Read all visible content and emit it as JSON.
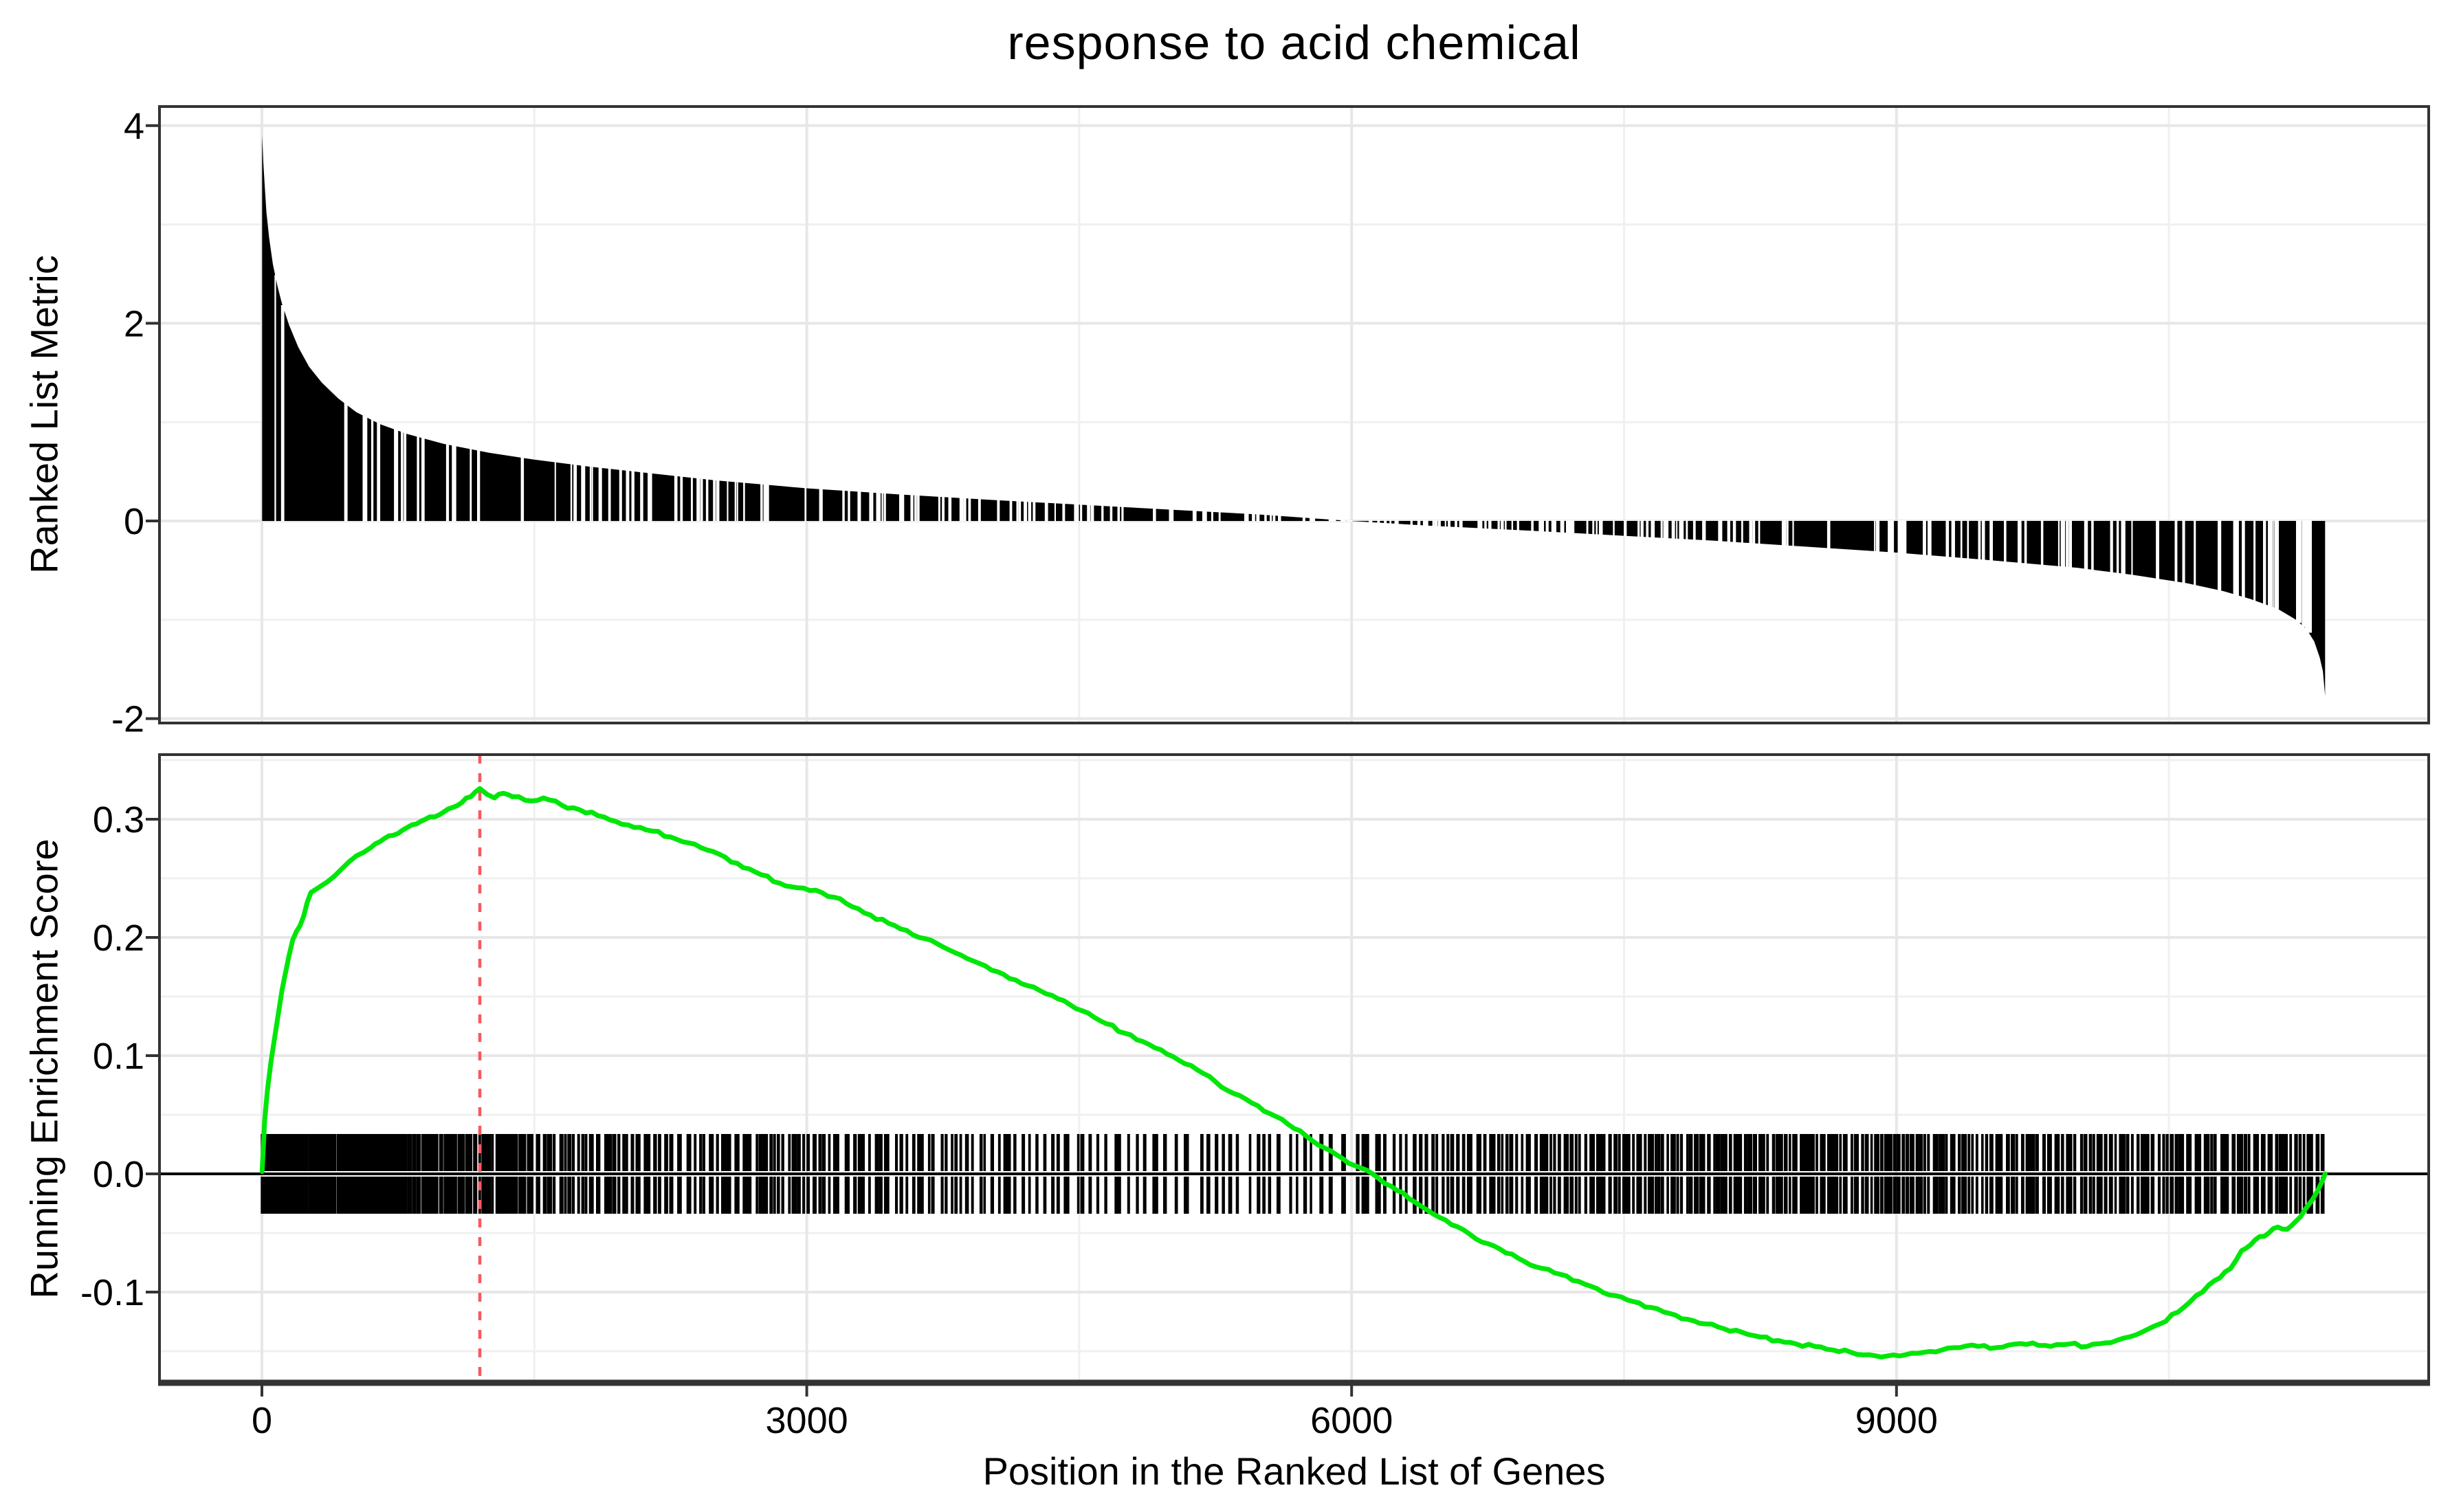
{
  "title": "response to acid chemical",
  "xlabel": "Position in the Ranked List of Genes",
  "panels": {
    "ranked_metric": {
      "ylabel": "Ranked List Metric"
    },
    "enrichment": {
      "ylabel": "Running Enrichment Score"
    }
  },
  "colors": {
    "es_line": "#00e609",
    "peak_vline": "#f8595f",
    "bars": "#000000",
    "grid_major": "#e7e7e7",
    "grid_minor": "#f0f0f0",
    "panel_border": "#333333",
    "zero_line": "#000000",
    "background": "#ffffff",
    "text": "#000000",
    "tick_mark": "#333333"
  },
  "chart_data": [
    {
      "panel": "ranked_list_metric",
      "type": "area",
      "title": "response to acid chemical",
      "xlabel": "",
      "ylabel": "Ranked List Metric",
      "x_ticks": [
        0,
        3000,
        6000,
        9000
      ],
      "x_tick_labels": [
        "0",
        "3000",
        "6000",
        "9000"
      ],
      "x_minor": [
        1500,
        4500,
        7500,
        10500
      ],
      "y_ticks": [
        4,
        2,
        0,
        -2
      ],
      "y_tick_labels": [
        "4",
        "2",
        "0",
        "-2"
      ],
      "y_minor": [
        3,
        1,
        -1
      ],
      "xlim": [
        -570,
        11940
      ],
      "ylim": [
        -2.04,
        4.19
      ],
      "grid": true,
      "n_genes": 11360,
      "metric_range": [
        -1.77,
        3.9
      ],
      "zero_cross_rank": 5950,
      "series": [
        {
          "name": "ranked list metric",
          "points": [
            [
              1,
              3.9
            ],
            [
              4,
              3.78
            ],
            [
              8,
              3.62
            ],
            [
              15,
              3.4
            ],
            [
              25,
              3.12
            ],
            [
              40,
              2.86
            ],
            [
              60,
              2.6
            ],
            [
              85,
              2.38
            ],
            [
              110,
              2.2
            ],
            [
              150,
              1.98
            ],
            [
              200,
              1.76
            ],
            [
              260,
              1.56
            ],
            [
              330,
              1.4
            ],
            [
              420,
              1.24
            ],
            [
              520,
              1.1
            ],
            [
              650,
              0.98
            ],
            [
              800,
              0.88
            ],
            [
              1000,
              0.78
            ],
            [
              1250,
              0.69
            ],
            [
              1500,
              0.62
            ],
            [
              1800,
              0.55
            ],
            [
              2100,
              0.49
            ],
            [
              2500,
              0.41
            ],
            [
              3000,
              0.33
            ],
            [
              3500,
              0.27
            ],
            [
              4000,
              0.215
            ],
            [
              4500,
              0.165
            ],
            [
              5000,
              0.115
            ],
            [
              5500,
              0.065
            ],
            [
              5950,
              0.005
            ],
            [
              6400,
              -0.045
            ],
            [
              7000,
              -0.1
            ],
            [
              7500,
              -0.15
            ],
            [
              8000,
              -0.2
            ],
            [
              8500,
              -0.26
            ],
            [
              9000,
              -0.32
            ],
            [
              9500,
              -0.395
            ],
            [
              10000,
              -0.475
            ],
            [
              10300,
              -0.545
            ],
            [
              10600,
              -0.63
            ],
            [
              10800,
              -0.71
            ],
            [
              10950,
              -0.79
            ],
            [
              11100,
              -0.89
            ],
            [
              11200,
              -1.0
            ],
            [
              11260,
              -1.1
            ],
            [
              11300,
              -1.22
            ],
            [
              11330,
              -1.38
            ],
            [
              11348,
              -1.52
            ],
            [
              11360,
              -1.77
            ]
          ]
        }
      ]
    },
    {
      "panel": "running_enrichment_score",
      "type": "line",
      "xlabel": "Position in the Ranked List of Genes",
      "ylabel": "Running Enrichment Score",
      "x_ticks": [
        0,
        3000,
        6000,
        9000
      ],
      "x_tick_labels": [
        "0",
        "3000",
        "6000",
        "9000"
      ],
      "x_minor": [
        1500,
        4500,
        7500,
        10500
      ],
      "y_ticks": [
        0.3,
        0.2,
        0.1,
        0.0,
        -0.1
      ],
      "y_tick_labels": [
        "0.3",
        "0.2",
        "0.1",
        "0.0",
        "-0.1"
      ],
      "y_minor": [
        0.35,
        0.25,
        0.15,
        0.05,
        -0.05,
        -0.15
      ],
      "xlim": [
        -570,
        11940
      ],
      "ylim": [
        -0.177,
        0.355
      ],
      "grid": true,
      "es_peak": {
        "rank": 1200,
        "value": 0.326
      },
      "es_min": {
        "rank": 8950,
        "value": -0.154
      },
      "vline_rank": 1200,
      "series": [
        {
          "name": "running enrichment score",
          "points": [
            [
              1,
              0.002
            ],
            [
              15,
              0.045
            ],
            [
              30,
              0.07
            ],
            [
              50,
              0.095
            ],
            [
              70,
              0.115
            ],
            [
              90,
              0.135
            ],
            [
              110,
              0.155
            ],
            [
              130,
              0.17
            ],
            [
              150,
              0.185
            ],
            [
              170,
              0.198
            ],
            [
              190,
              0.205
            ],
            [
              210,
              0.21
            ],
            [
              230,
              0.218
            ],
            [
              250,
              0.23
            ],
            [
              270,
              0.238
            ],
            [
              300,
              0.241
            ],
            [
              330,
              0.244
            ],
            [
              360,
              0.247
            ],
            [
              400,
              0.252
            ],
            [
              440,
              0.258
            ],
            [
              480,
              0.264
            ],
            [
              520,
              0.269
            ],
            [
              560,
              0.272
            ],
            [
              600,
              0.276
            ],
            [
              650,
              0.281
            ],
            [
              700,
              0.286
            ],
            [
              750,
              0.288
            ],
            [
              800,
              0.293
            ],
            [
              850,
              0.296
            ],
            [
              900,
              0.3
            ],
            [
              950,
              0.302
            ],
            [
              1000,
              0.306
            ],
            [
              1050,
              0.31
            ],
            [
              1100,
              0.314
            ],
            [
              1150,
              0.319
            ],
            [
              1200,
              0.326
            ],
            [
              1240,
              0.321
            ],
            [
              1280,
              0.318
            ],
            [
              1330,
              0.322
            ],
            [
              1380,
              0.319
            ],
            [
              1450,
              0.316
            ],
            [
              1550,
              0.318
            ],
            [
              1650,
              0.312
            ],
            [
              1750,
              0.308
            ],
            [
              1850,
              0.303
            ],
            [
              1950,
              0.298
            ],
            [
              2050,
              0.293
            ],
            [
              2150,
              0.29
            ],
            [
              2250,
              0.285
            ],
            [
              2350,
              0.28
            ],
            [
              2450,
              0.274
            ],
            [
              2550,
              0.268
            ],
            [
              2650,
              0.259
            ],
            [
              2750,
              0.253
            ],
            [
              2850,
              0.246
            ],
            [
              2950,
              0.242
            ],
            [
              3050,
              0.24
            ],
            [
              3150,
              0.234
            ],
            [
              3250,
              0.226
            ],
            [
              3350,
              0.219
            ],
            [
              3450,
              0.212
            ],
            [
              3550,
              0.206
            ],
            [
              3650,
              0.199
            ],
            [
              3750,
              0.192
            ],
            [
              3850,
              0.185
            ],
            [
              3950,
              0.178
            ],
            [
              4050,
              0.171
            ],
            [
              4150,
              0.164
            ],
            [
              4250,
              0.158
            ],
            [
              4350,
              0.151
            ],
            [
              4450,
              0.143
            ],
            [
              4550,
              0.136
            ],
            [
              4650,
              0.127
            ],
            [
              4750,
              0.119
            ],
            [
              4850,
              0.112
            ],
            [
              4950,
              0.105
            ],
            [
              5050,
              0.096
            ],
            [
              5150,
              0.088
            ],
            [
              5250,
              0.078
            ],
            [
              5350,
              0.068
            ],
            [
              5450,
              0.06
            ],
            [
              5550,
              0.051
            ],
            [
              5650,
              0.042
            ],
            [
              5750,
              0.032
            ],
            [
              5850,
              0.022
            ],
            [
              5950,
              0.013
            ],
            [
              6050,
              0.005
            ],
            [
              6150,
              -0.004
            ],
            [
              6250,
              -0.014
            ],
            [
              6350,
              -0.024
            ],
            [
              6450,
              -0.034
            ],
            [
              6550,
              -0.043
            ],
            [
              6650,
              -0.051
            ],
            [
              6750,
              -0.059
            ],
            [
              6850,
              -0.067
            ],
            [
              6950,
              -0.074
            ],
            [
              7050,
              -0.08
            ],
            [
              7150,
              -0.085
            ],
            [
              7250,
              -0.091
            ],
            [
              7350,
              -0.097
            ],
            [
              7450,
              -0.103
            ],
            [
              7550,
              -0.108
            ],
            [
              7650,
              -0.113
            ],
            [
              7750,
              -0.118
            ],
            [
              7850,
              -0.123
            ],
            [
              7950,
              -0.127
            ],
            [
              8050,
              -0.131
            ],
            [
              8150,
              -0.134
            ],
            [
              8250,
              -0.138
            ],
            [
              8350,
              -0.141
            ],
            [
              8450,
              -0.144
            ],
            [
              8550,
              -0.146
            ],
            [
              8650,
              -0.149
            ],
            [
              8750,
              -0.151
            ],
            [
              8850,
              -0.153
            ],
            [
              8950,
              -0.154
            ],
            [
              9050,
              -0.153
            ],
            [
              9150,
              -0.151
            ],
            [
              9250,
              -0.149
            ],
            [
              9350,
              -0.147
            ],
            [
              9450,
              -0.146
            ],
            [
              9550,
              -0.147
            ],
            [
              9650,
              -0.144
            ],
            [
              9750,
              -0.143
            ],
            [
              9850,
              -0.146
            ],
            [
              9950,
              -0.144
            ],
            [
              10050,
              -0.146
            ],
            [
              10150,
              -0.143
            ],
            [
              10250,
              -0.139
            ],
            [
              10350,
              -0.134
            ],
            [
              10450,
              -0.127
            ],
            [
              10550,
              -0.117
            ],
            [
              10650,
              -0.103
            ],
            [
              10720,
              -0.094
            ],
            [
              10780,
              -0.088
            ],
            [
              10840,
              -0.08
            ],
            [
              10900,
              -0.065
            ],
            [
              10950,
              -0.06
            ],
            [
              11000,
              -0.053
            ],
            [
              11050,
              -0.05
            ],
            [
              11100,
              -0.045
            ],
            [
              11150,
              -0.047
            ],
            [
              11200,
              -0.04
            ],
            [
              11250,
              -0.03
            ],
            [
              11290,
              -0.022
            ],
            [
              11320,
              -0.014
            ],
            [
              11345,
              -0.006
            ],
            [
              11360,
              0.0
            ]
          ]
        }
      ],
      "gene_set_tick_segments": [
        [
          0,
          200,
          30
        ],
        [
          200,
          400,
          22
        ],
        [
          400,
          700,
          30
        ],
        [
          700,
          1000,
          24
        ],
        [
          1000,
          1500,
          34
        ],
        [
          1500,
          2000,
          24
        ],
        [
          2000,
          2500,
          20
        ],
        [
          2500,
          3000,
          22
        ],
        [
          3000,
          3500,
          18
        ],
        [
          3500,
          4000,
          16
        ],
        [
          4000,
          4500,
          14
        ],
        [
          4500,
          5000,
          12
        ],
        [
          5000,
          5500,
          11
        ],
        [
          5500,
          6000,
          12
        ],
        [
          6000,
          6500,
          14
        ],
        [
          6500,
          7000,
          20
        ],
        [
          7000,
          7500,
          22
        ],
        [
          7500,
          8000,
          24
        ],
        [
          8000,
          8500,
          26
        ],
        [
          8500,
          9000,
          27
        ],
        [
          9000,
          9500,
          24
        ],
        [
          9500,
          10000,
          22
        ],
        [
          10000,
          10500,
          21
        ],
        [
          10500,
          11000,
          22
        ],
        [
          11000,
          11360,
          18
        ]
      ]
    }
  ]
}
